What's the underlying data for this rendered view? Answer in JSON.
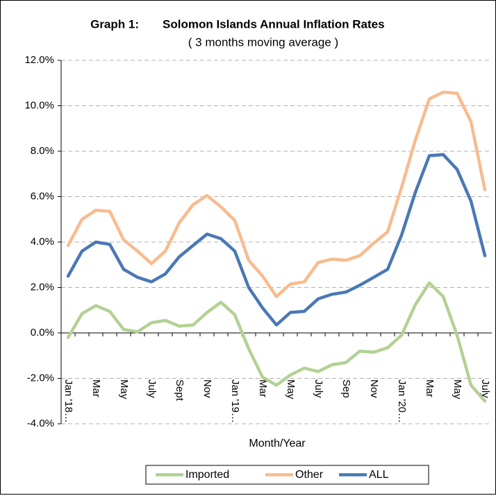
{
  "chart_data": {
    "type": "line",
    "title": "Graph 1:",
    "title_main": "Solomon Islands Annual Inflation Rates",
    "subtitle": "( 3 months moving average )",
    "x_label": "Month/Year",
    "categories": [
      "Jan '18…",
      null,
      "Mar",
      null,
      "May",
      null,
      "July",
      null,
      "Sept",
      null,
      "Nov",
      null,
      "Jan '19…",
      null,
      "Mar",
      null,
      "May",
      null,
      "July",
      null,
      "Sep",
      null,
      "Nov",
      null,
      "Jan '20…",
      null,
      "Mar",
      null,
      "May",
      null,
      "July"
    ],
    "series": [
      {
        "name": "Imported",
        "color": "#b3d193",
        "values": [
          -0.2,
          0.85,
          1.2,
          0.95,
          0.15,
          0.05,
          0.45,
          0.55,
          0.3,
          0.35,
          0.9,
          1.35,
          0.8,
          -0.7,
          -1.95,
          -2.3,
          -1.85,
          -1.55,
          -1.7,
          -1.4,
          -1.3,
          -0.8,
          -0.85,
          -0.65,
          -0.1,
          1.25,
          2.2,
          1.6,
          -0.1,
          -2.3,
          -3.0
        ]
      },
      {
        "name": "Other",
        "color": "#f8bb8e",
        "values": [
          3.85,
          5.0,
          5.4,
          5.35,
          4.1,
          3.6,
          3.05,
          3.6,
          4.85,
          5.65,
          6.05,
          5.55,
          4.95,
          3.2,
          2.5,
          1.6,
          2.15,
          2.25,
          3.1,
          3.25,
          3.2,
          3.4,
          3.95,
          4.45,
          6.4,
          8.5,
          10.3,
          10.6,
          10.55,
          9.3,
          6.3
        ]
      },
      {
        "name": "ALL",
        "color": "#4a78b6",
        "values": [
          2.5,
          3.6,
          4.0,
          3.9,
          2.8,
          2.45,
          2.25,
          2.6,
          3.35,
          3.85,
          4.35,
          4.15,
          3.6,
          2.0,
          1.1,
          0.35,
          0.9,
          0.95,
          1.5,
          1.7,
          1.8,
          2.1,
          2.45,
          2.8,
          4.3,
          6.2,
          7.8,
          7.85,
          7.2,
          5.8,
          3.4
        ]
      }
    ],
    "ylim": [
      -4,
      12
    ],
    "yticks": [
      {
        "value": -4,
        "label": "-4.0%"
      },
      {
        "value": -2,
        "label": "-2.0%"
      },
      {
        "value": 0,
        "label": "0.0%"
      },
      {
        "value": 2,
        "label": "2.0%"
      },
      {
        "value": 4,
        "label": "4.0%"
      },
      {
        "value": 6,
        "label": "6.0%"
      },
      {
        "value": 8,
        "label": "8.0%"
      },
      {
        "value": 10,
        "label": "10.0%"
      },
      {
        "value": 12,
        "label": "12.0%"
      }
    ],
    "grid": true
  }
}
